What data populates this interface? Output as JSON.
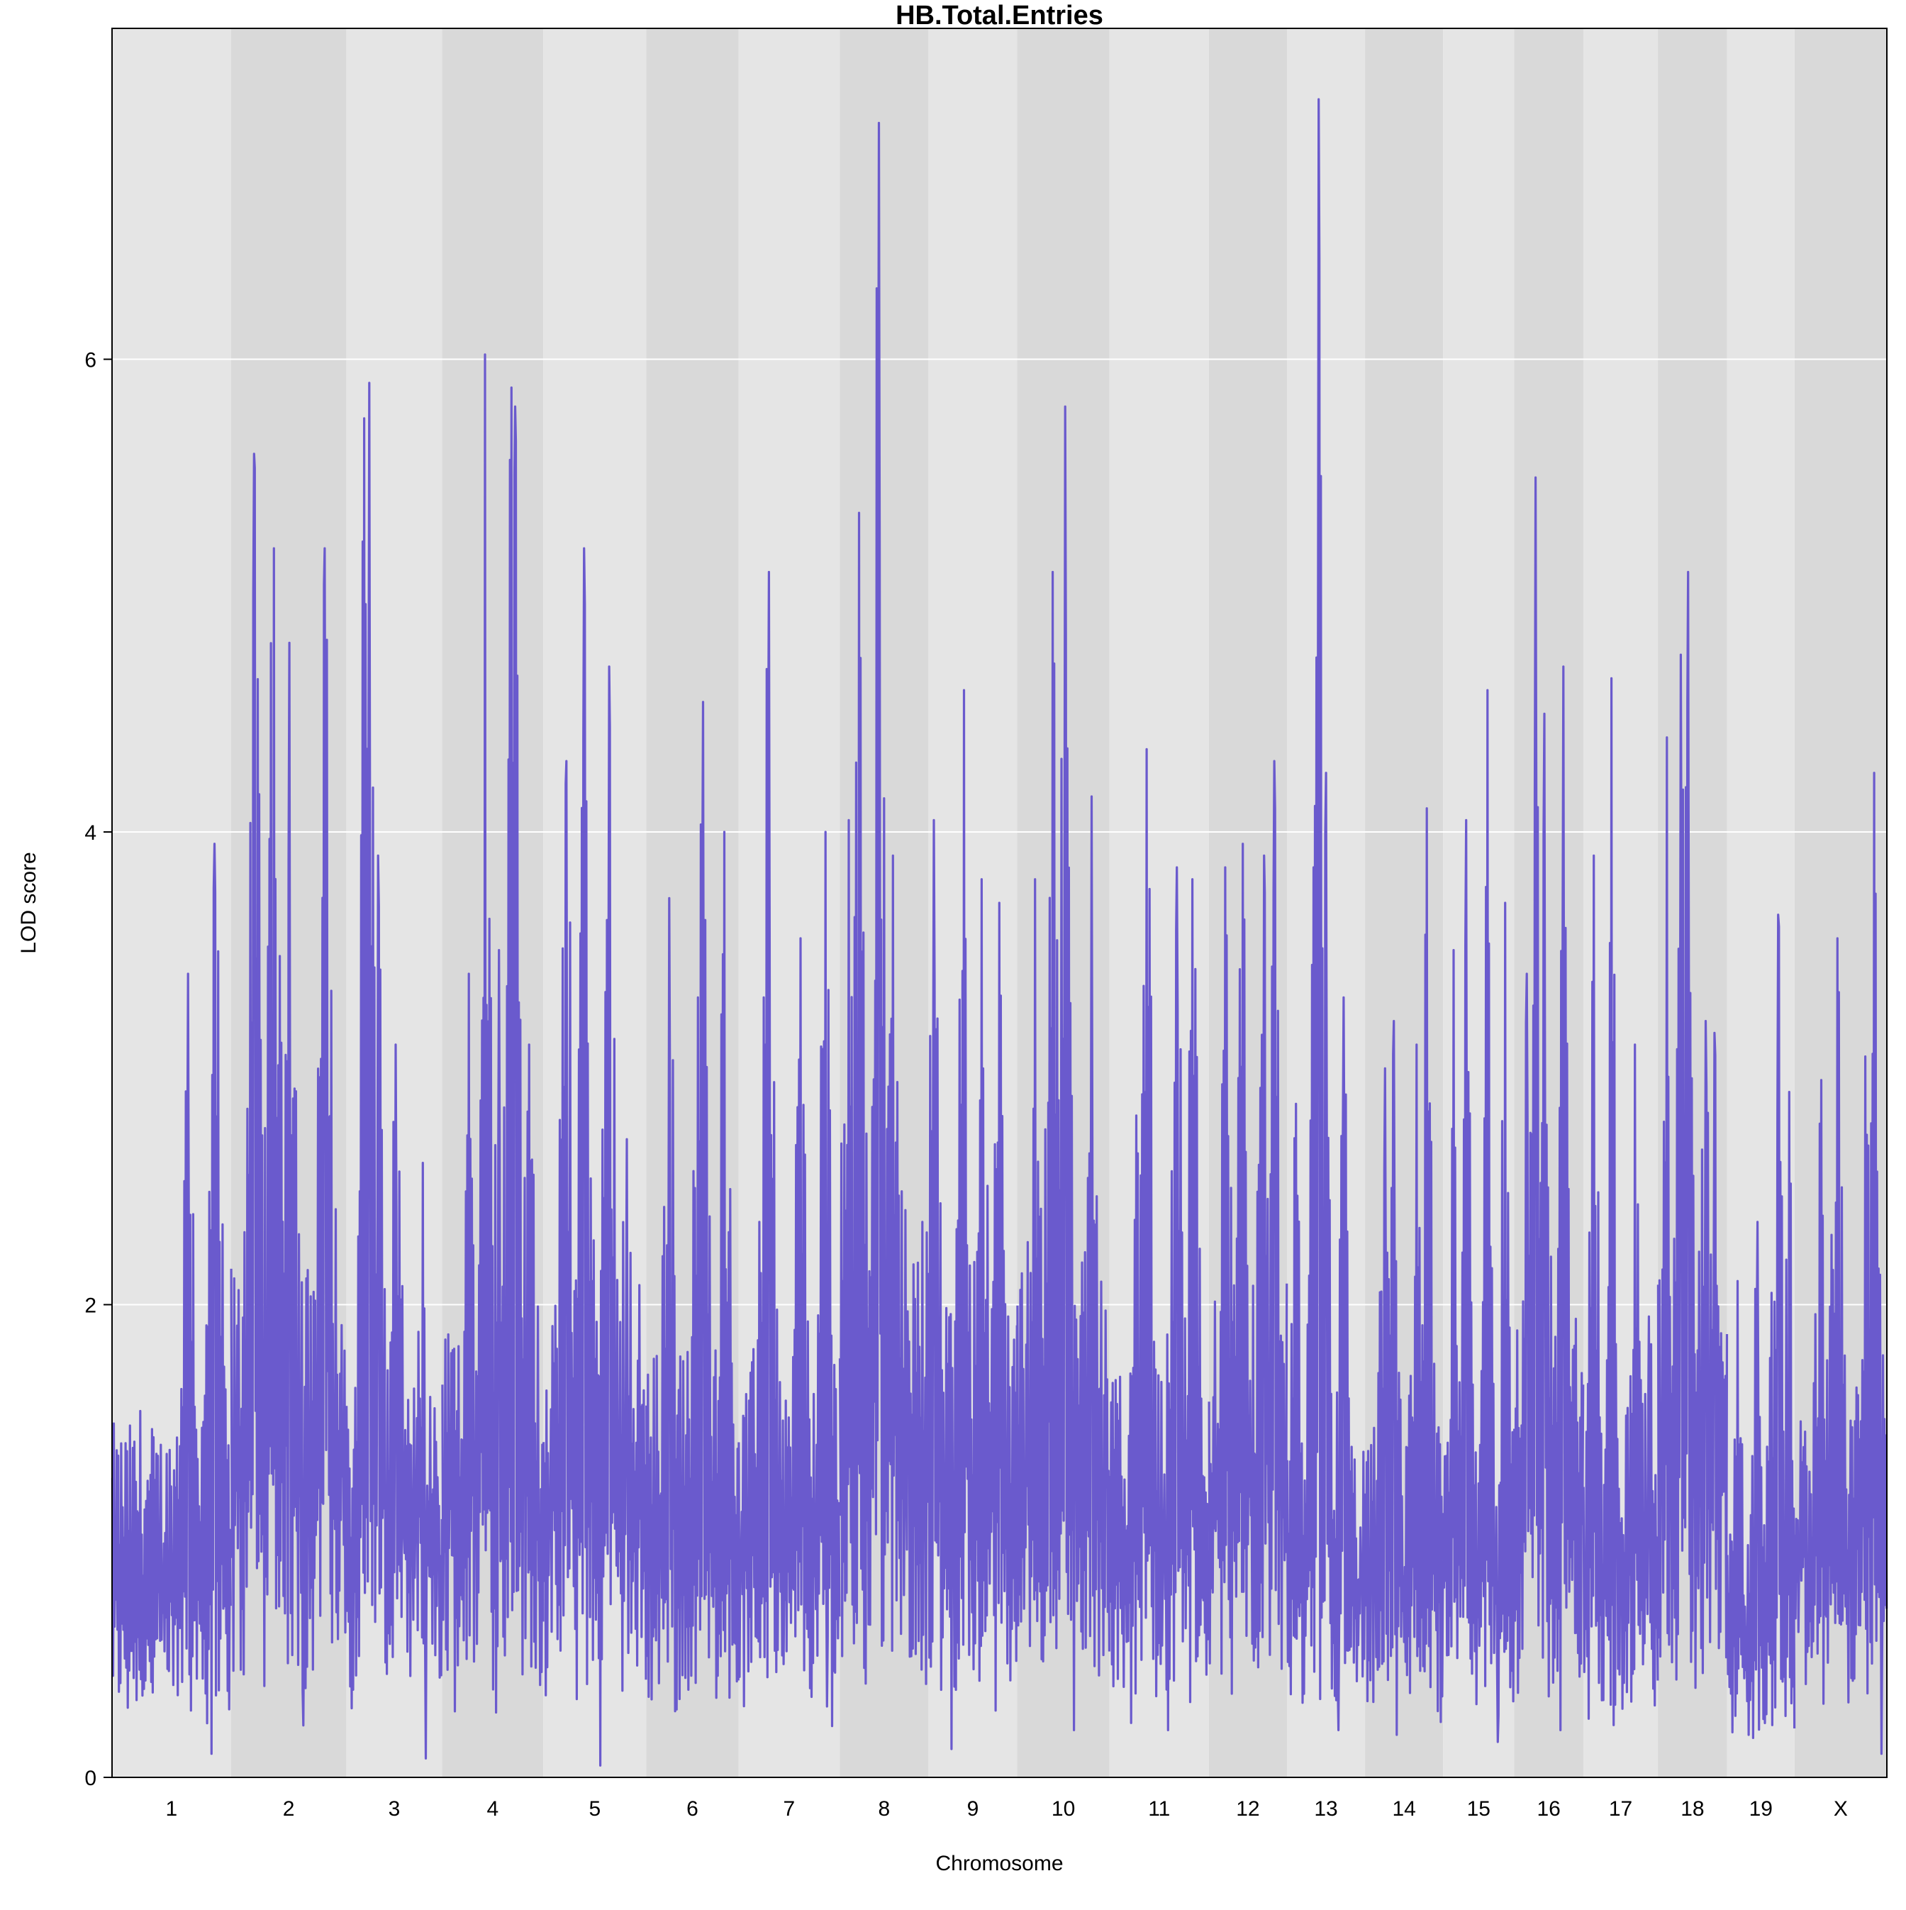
{
  "chart_data": {
    "type": "line",
    "title": "HB.Total.Entries",
    "xlabel": "Chromosome",
    "ylabel": "LOD score",
    "ylim": [
      0,
      7.4
    ],
    "yticks": [
      0,
      2,
      4,
      6
    ],
    "grid": true,
    "line_color": "#6A5ACD",
    "band_colors": [
      "#E5E5E5",
      "#D9D9D9"
    ],
    "categories": [
      "1",
      "2",
      "3",
      "4",
      "5",
      "6",
      "7",
      "8",
      "9",
      "10",
      "11",
      "12",
      "13",
      "14",
      "15",
      "16",
      "17",
      "18",
      "19",
      "X"
    ],
    "series": [
      {
        "chromosomes": [
          {
            "chr": "1",
            "start": 0.0,
            "end": 0.067,
            "peaks": [
              [
                0.016,
                1.55
              ],
              [
                0.043,
                3.4
              ],
              [
                0.058,
                3.95
              ],
              [
                0.056,
                0.1
              ]
            ],
            "base": 0.6,
            "mid": 1.5
          },
          {
            "chr": "2",
            "start": 0.067,
            "end": 0.132,
            "peaks": [
              [
                0.08,
                5.6
              ],
              [
                0.091,
                5.2
              ],
              [
                0.1,
                4.8
              ],
              [
                0.12,
                5.2
              ],
              [
                0.108,
                0.22
              ]
            ],
            "base": 1.0,
            "mid": 2.2
          },
          {
            "chr": "3",
            "start": 0.132,
            "end": 0.186,
            "peaks": [
              [
                0.142,
                5.75
              ],
              [
                0.145,
                5.9
              ],
              [
                0.15,
                3.9
              ],
              [
                0.16,
                3.1
              ],
              [
                0.175,
                2.6
              ],
              [
                0.177,
                0.08
              ]
            ],
            "base": 0.8,
            "mid": 1.6
          },
          {
            "chr": "4",
            "start": 0.186,
            "end": 0.243,
            "peaks": [
              [
                0.201,
                3.4
              ],
              [
                0.21,
                6.02
              ],
              [
                0.218,
                3.5
              ],
              [
                0.225,
                5.88
              ],
              [
                0.227,
                5.8
              ],
              [
                0.235,
                3.1
              ]
            ],
            "base": 0.9,
            "mid": 1.9
          },
          {
            "chr": "5",
            "start": 0.243,
            "end": 0.301,
            "peaks": [
              [
                0.256,
                4.3
              ],
              [
                0.266,
                5.2
              ],
              [
                0.28,
                4.7
              ],
              [
                0.29,
                2.7
              ],
              [
                0.275,
                0.05
              ]
            ],
            "base": 0.8,
            "mid": 2.1
          },
          {
            "chr": "6",
            "start": 0.301,
            "end": 0.353,
            "peaks": [
              [
                0.314,
                3.72
              ],
              [
                0.33,
                3.3
              ],
              [
                0.333,
                4.55
              ],
              [
                0.345,
                4.0
              ]
            ],
            "base": 0.7,
            "mid": 1.8
          },
          {
            "chr": "7",
            "start": 0.353,
            "end": 0.41,
            "peaks": [
              [
                0.367,
                3.3
              ],
              [
                0.37,
                5.1
              ],
              [
                0.388,
                3.55
              ],
              [
                0.402,
                4.0
              ],
              [
                0.403,
                0.3
              ]
            ],
            "base": 0.7,
            "mid": 1.7
          },
          {
            "chr": "8",
            "start": 0.41,
            "end": 0.46,
            "peaks": [
              [
                0.415,
                4.05
              ],
              [
                0.421,
                5.35
              ],
              [
                0.431,
                6.3
              ],
              [
                0.432,
                7.0
              ],
              [
                0.44,
                3.9
              ],
              [
                0.447,
                2.4
              ]
            ],
            "base": 1.0,
            "mid": 2.4
          },
          {
            "chr": "9",
            "start": 0.46,
            "end": 0.51,
            "peaks": [
              [
                0.463,
                4.05
              ],
              [
                0.48,
                4.6
              ],
              [
                0.49,
                3.8
              ],
              [
                0.5,
                3.7
              ],
              [
                0.473,
                0.12
              ]
            ],
            "base": 0.8,
            "mid": 2.0
          },
          {
            "chr": "10",
            "start": 0.51,
            "end": 0.562,
            "peaks": [
              [
                0.52,
                3.8
              ],
              [
                0.53,
                5.1
              ],
              [
                0.537,
                5.8
              ],
              [
                0.552,
                4.15
              ],
              [
                0.542,
                0.2
              ]
            ],
            "base": 0.9,
            "mid": 2.2
          },
          {
            "chr": "11",
            "start": 0.562,
            "end": 0.618,
            "peaks": [
              [
                0.577,
                2.8
              ],
              [
                0.583,
                4.35
              ],
              [
                0.6,
                3.85
              ],
              [
                0.609,
                3.8
              ],
              [
                0.595,
                0.2
              ]
            ],
            "base": 0.7,
            "mid": 1.7
          },
          {
            "chr": "12",
            "start": 0.618,
            "end": 0.662,
            "peaks": [
              [
                0.627,
                3.85
              ],
              [
                0.637,
                3.95
              ],
              [
                0.649,
                3.9
              ],
              [
                0.655,
                4.3
              ]
            ],
            "base": 0.9,
            "mid": 2.2
          },
          {
            "chr": "13",
            "start": 0.662,
            "end": 0.706,
            "peaks": [
              [
                0.667,
                2.85
              ],
              [
                0.677,
                3.85
              ],
              [
                0.68,
                7.1
              ],
              [
                0.684,
                4.25
              ],
              [
                0.694,
                3.3
              ],
              [
                0.691,
                0.2
              ]
            ],
            "base": 0.6,
            "mid": 1.4
          },
          {
            "chr": "14",
            "start": 0.706,
            "end": 0.75,
            "peaks": [
              [
                0.717,
                3.0
              ],
              [
                0.722,
                3.2
              ],
              [
                0.735,
                3.1
              ],
              [
                0.741,
                4.1
              ],
              [
                0.724,
                0.18
              ]
            ],
            "base": 0.6,
            "mid": 1.5
          },
          {
            "chr": "15",
            "start": 0.75,
            "end": 0.79,
            "peaks": [
              [
                0.756,
                3.5
              ],
              [
                0.763,
                4.05
              ],
              [
                0.775,
                4.6
              ],
              [
                0.785,
                3.7
              ],
              [
                0.781,
                0.15
              ]
            ],
            "base": 0.6,
            "mid": 1.5
          },
          {
            "chr": "16",
            "start": 0.79,
            "end": 0.829,
            "peaks": [
              [
                0.797,
                3.4
              ],
              [
                0.802,
                5.5
              ],
              [
                0.807,
                4.5
              ],
              [
                0.818,
                4.7
              ],
              [
                0.816,
                0.2
              ]
            ],
            "base": 0.8,
            "mid": 2.0
          },
          {
            "chr": "17",
            "start": 0.829,
            "end": 0.871,
            "peaks": [
              [
                0.835,
                3.9
              ],
              [
                0.845,
                4.65
              ],
              [
                0.858,
                3.1
              ],
              [
                0.866,
                1.95
              ],
              [
                0.852,
                0.4
              ]
            ],
            "base": 0.6,
            "mid": 1.5
          },
          {
            "chr": "18",
            "start": 0.871,
            "end": 0.91,
            "peaks": [
              [
                0.876,
                4.4
              ],
              [
                0.884,
                4.75
              ],
              [
                0.888,
                5.1
              ],
              [
                0.898,
                3.2
              ],
              [
                0.903,
                3.15
              ]
            ],
            "base": 0.9,
            "mid": 2.2
          },
          {
            "chr": "19",
            "start": 0.91,
            "end": 0.948,
            "peaks": [
              [
                0.916,
                2.1
              ],
              [
                0.927,
                2.35
              ],
              [
                0.935,
                2.05
              ],
              [
                0.939,
                3.65
              ],
              [
                0.945,
                2.9
              ],
              [
                0.922,
                0.18
              ]
            ],
            "base": 0.4,
            "mid": 1.1
          },
          {
            "chr": "X",
            "start": 0.948,
            "end": 1.0,
            "peaks": [
              [
                0.963,
                2.95
              ],
              [
                0.972,
                3.55
              ],
              [
                0.988,
                3.05
              ],
              [
                0.993,
                4.25
              ],
              [
                0.997,
                0.1
              ]
            ],
            "base": 0.7,
            "mid": 1.6
          }
        ]
      }
    ]
  }
}
